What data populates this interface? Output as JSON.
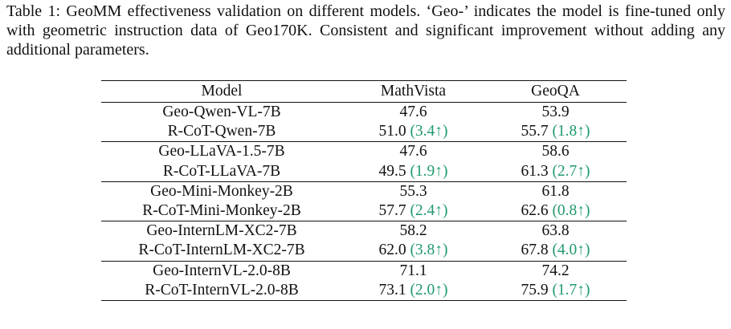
{
  "caption": {
    "label": "Table 1:",
    "text": "GeoMM effectiveness validation on different models. ‘Geo-’ indicates the model is fine-tuned only with geometric instruction data of Geo170K. Consistent and significant improvement without adding any additional parameters."
  },
  "table": {
    "headers": [
      "Model",
      "MathVista",
      "GeoQA"
    ],
    "groups": [
      {
        "baseline": {
          "model": "Geo-Qwen-VL-7B",
          "mathvista": "47.6",
          "geoqa": "53.9"
        },
        "rcot": {
          "model": "R-CoT-Qwen-7B",
          "mathvista": "51.0",
          "mathvista_delta": "(3.4↑)",
          "geoqa": "55.7",
          "geoqa_delta": "(1.8↑)"
        }
      },
      {
        "baseline": {
          "model": "Geo-LLaVA-1.5-7B",
          "mathvista": "47.6",
          "geoqa": "58.6"
        },
        "rcot": {
          "model": "R-CoT-LLaVA-7B",
          "mathvista": "49.5",
          "mathvista_delta": "(1.9↑)",
          "geoqa": "61.3",
          "geoqa_delta": "(2.7↑)"
        }
      },
      {
        "baseline": {
          "model": "Geo-Mini-Monkey-2B",
          "mathvista": "55.3",
          "geoqa": "61.8"
        },
        "rcot": {
          "model": "R-CoT-Mini-Monkey-2B",
          "mathvista": "57.7",
          "mathvista_delta": "(2.4↑)",
          "geoqa": "62.6",
          "geoqa_delta": "(0.8↑)"
        }
      },
      {
        "baseline": {
          "model": "Geo-InternLM-XC2-7B",
          "mathvista": "58.2",
          "geoqa": "63.8"
        },
        "rcot": {
          "model": "R-CoT-InternLM-XC2-7B",
          "mathvista": "62.0",
          "mathvista_delta": "(3.8↑)",
          "geoqa": "67.8",
          "geoqa_delta": "(4.0↑)"
        }
      },
      {
        "baseline": {
          "model": "Geo-InternVL-2.0-8B",
          "mathvista": "71.1",
          "geoqa": "74.2"
        },
        "rcot": {
          "model": "R-CoT-InternVL-2.0-8B",
          "mathvista": "73.1",
          "mathvista_delta": "(2.0↑)",
          "geoqa": "75.9",
          "geoqa_delta": "(1.7↑)"
        }
      }
    ]
  },
  "colors": {
    "text": "#111111",
    "improvement": "#1f9a6b"
  }
}
